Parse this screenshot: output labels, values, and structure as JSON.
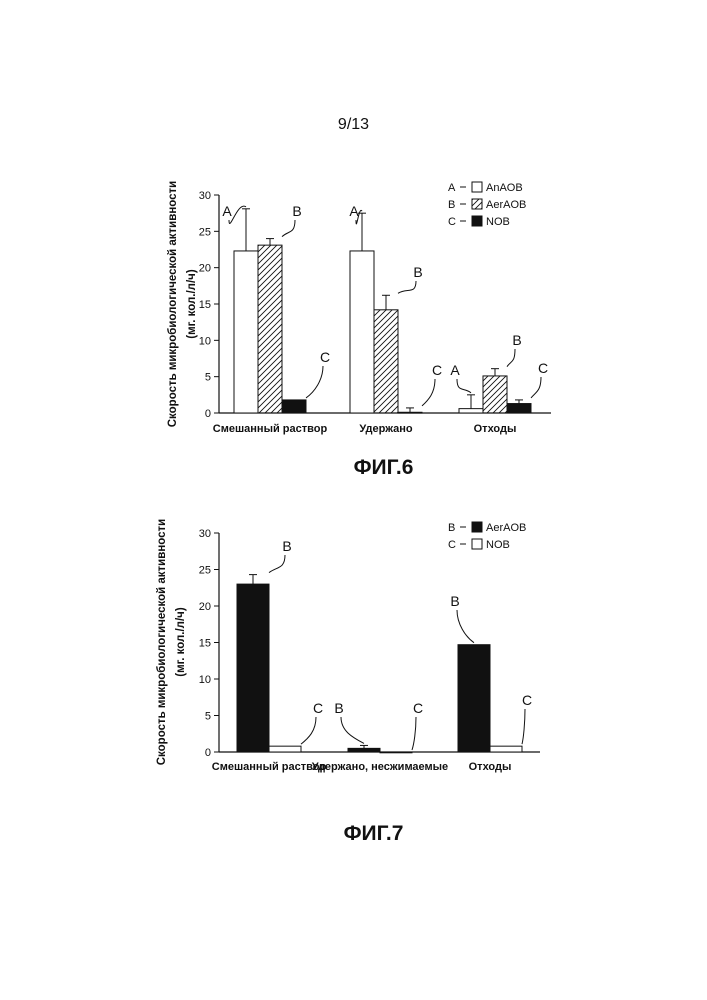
{
  "page_number": "9/13",
  "chart_data": [
    {
      "type": "bar",
      "figure_label": "ФИГ.6",
      "ylabel_line1": "Скорость микробиологической активности",
      "ylabel_line2": "(мг. кол./л/ч)",
      "ylim": [
        0,
        30
      ],
      "yticks": [
        "0",
        "5",
        "10",
        "15",
        "20",
        "25",
        "30"
      ],
      "categories": [
        "Смешанный раствор",
        "Удержано",
        "Отходы"
      ],
      "series": [
        {
          "key": "A",
          "name": "AnAOB",
          "fill": "white",
          "values": [
            22.3,
            22.3,
            0.6
          ],
          "errors": [
            5.8,
            5.2,
            1.9
          ]
        },
        {
          "key": "B",
          "name": "AerAOB",
          "fill": "hatch",
          "values": [
            23.1,
            14.2,
            5.1
          ],
          "errors": [
            0.9,
            2.0,
            1.0
          ]
        },
        {
          "key": "C",
          "name": "NOB",
          "fill": "black",
          "values": [
            1.8,
            0.1,
            1.3
          ],
          "errors": [
            0.0,
            0.6,
            0.5
          ]
        }
      ],
      "legend_position": "top-right"
    },
    {
      "type": "bar",
      "figure_label": "ФИГ.7",
      "ylabel_line1": "Скорость микробиологической активности",
      "ylabel_line2": "(мг. кол./л/ч)",
      "ylim": [
        0,
        30
      ],
      "yticks": [
        "0",
        "5",
        "10",
        "15",
        "20",
        "25",
        "30"
      ],
      "categories": [
        "Смешанный раствор",
        "Удержано, несжимаемые",
        "Отходы"
      ],
      "series": [
        {
          "key": "B",
          "name": "AerAOB",
          "fill": "black",
          "values": [
            23.0,
            0.5,
            14.7
          ],
          "errors": [
            1.3,
            0.4,
            0.0
          ]
        },
        {
          "key": "C",
          "name": "NOB",
          "fill": "white",
          "values": [
            0.8,
            0.0,
            0.8
          ],
          "errors": [
            0.0,
            0.0,
            0.0
          ]
        }
      ],
      "legend_position": "top-right"
    }
  ]
}
